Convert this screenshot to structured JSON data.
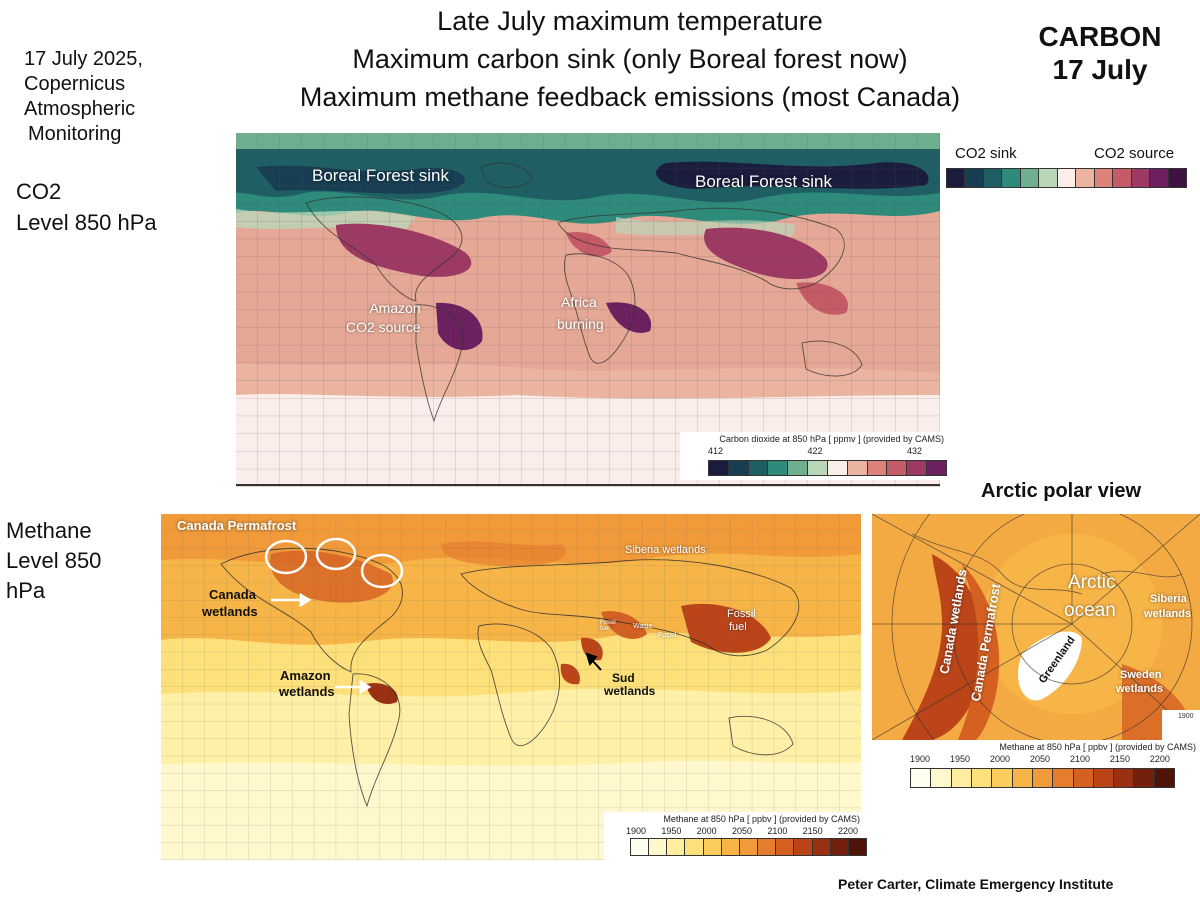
{
  "header": {
    "lines": [
      "Late July maximum temperature",
      "Maximum carbon sink (only Boreal forest now)",
      "Maximum methane feedback emissions (most Canada)"
    ],
    "side_note": [
      "17 July 2025,",
      "Copernicus",
      "Atmospheric",
      "Monitoring"
    ],
    "badge": [
      "CARBON",
      "17 July"
    ]
  },
  "co2_panel": {
    "label": [
      "CO2",
      "Level 850 hPa"
    ],
    "annotations": {
      "boreal_na": "Boreal Forest  sink",
      "boreal_eu": "Boreal Forest sink",
      "amazon_1": "Amazon",
      "amazon_2": "CO2 source",
      "africa_1": "Africa",
      "africa_2": "burning"
    },
    "sink_source_legend": {
      "sink_label": "CO2 sink",
      "source_label": "CO2 source"
    },
    "cams_legend": {
      "title": "Carbon dioxide at 850 hPa [ ppmv ] (provided by CAMS)",
      "ticks": [
        "412",
        "422",
        "432"
      ]
    },
    "palette": [
      "#1b1d3f",
      "#173e52",
      "#1f5f63",
      "#2e8a7a",
      "#6fae8e",
      "#b9d6b9",
      "#fbeeea",
      "#eab4a1",
      "#dc8278",
      "#c45b67",
      "#9c3a64",
      "#6c2060",
      "#3e1344"
    ]
  },
  "ch4_panel": {
    "label": [
      "Methane",
      "Level 850",
      "hPa"
    ],
    "annotations": {
      "canada_permafrost": "Canada Permafrost",
      "siberia": "Siberia wetlands",
      "canada_wetlands_1": "Canada",
      "canada_wetlands_2": "wetlands",
      "fossil_1": "Fossil",
      "fossil_2": "fuel",
      "small_fossil_a": "Fossil fuel",
      "small_waste": "Waste",
      "small_fossil_b": "Fossil",
      "amazon_1": "Amazon",
      "amazon_2": "wetlands",
      "sud_1": "Sud",
      "sud_2": "wetlands"
    },
    "cams_legend": {
      "title": "Methane at 850 hPa [ ppbv ] (provided by CAMS)",
      "ticks": [
        "1900",
        "1950",
        "2000",
        "2050",
        "2100",
        "2150",
        "2200"
      ]
    },
    "palette": [
      "#fffff0",
      "#fff8cc",
      "#ffee9e",
      "#fde07a",
      "#fbcd5c",
      "#f7b548",
      "#f09a3a",
      "#e67d2e",
      "#d46022",
      "#bb4519",
      "#9a3012",
      "#73200d",
      "#4e1407"
    ]
  },
  "arctic_panel": {
    "title": "Arctic polar view",
    "annotations": {
      "arctic_1": "Arctic",
      "arctic_2": "ocean",
      "siberia_1": "Siberia",
      "siberia_2": "wetlands",
      "canada_wetlands": "Canada wetlands",
      "canada_permafrost": "Canada Permafrost",
      "greenland": "Greenland",
      "sweden_1": "Sweden",
      "sweden_2": "wetlands",
      "corner_tick": "1900"
    },
    "cams_legend": {
      "title": "Methane at 850 hPa [ ppbv ] (provided by CAMS)",
      "ticks": [
        "1900",
        "1950",
        "2000",
        "2050",
        "2100",
        "2150",
        "2200"
      ]
    }
  },
  "credit": "Peter Carter, Climate Emergency Institute"
}
